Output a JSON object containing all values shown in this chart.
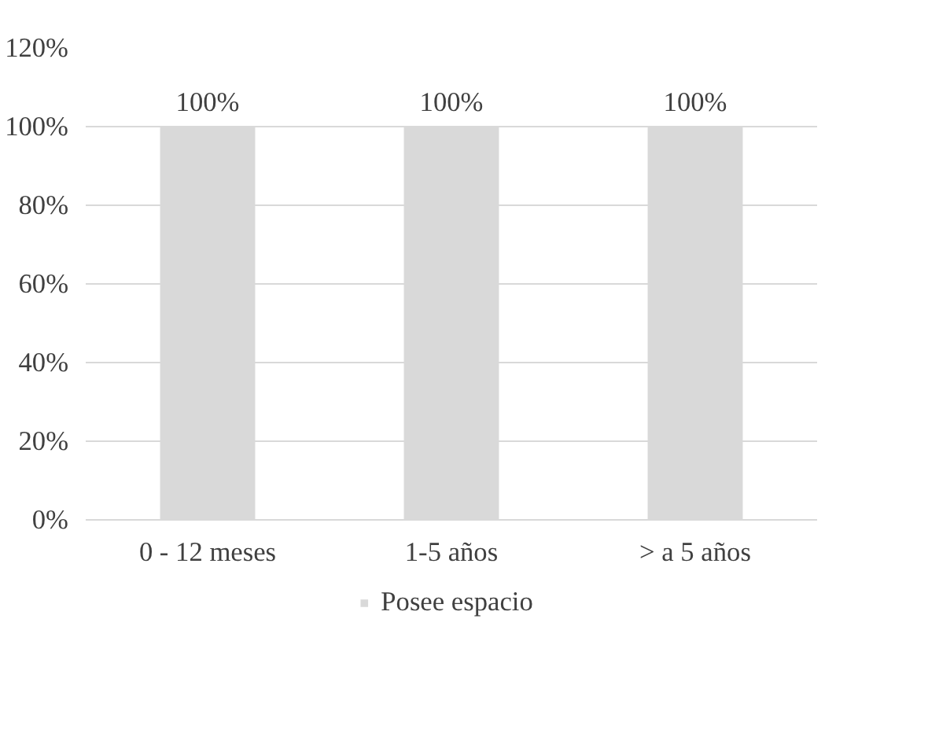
{
  "chart_data": {
    "type": "bar",
    "categories": [
      "0 - 12 meses",
      "1-5 años",
      "> a 5 años"
    ],
    "series": [
      {
        "name": "Posee espacio",
        "color": "#d9d9d9",
        "values": [
          100,
          100,
          100
        ],
        "value_labels": [
          "100%",
          "100%",
          "100%"
        ]
      }
    ],
    "ylim": [
      0,
      120
    ],
    "yticks": [
      {
        "value": 0,
        "label": "0%"
      },
      {
        "value": 20,
        "label": "20%"
      },
      {
        "value": 40,
        "label": "40%"
      },
      {
        "value": 60,
        "label": "60%"
      },
      {
        "value": 80,
        "label": "80%"
      },
      {
        "value": 100,
        "label": "100%"
      },
      {
        "value": 120,
        "label": "120%"
      }
    ],
    "grid": "y",
    "legend": "bottom"
  }
}
